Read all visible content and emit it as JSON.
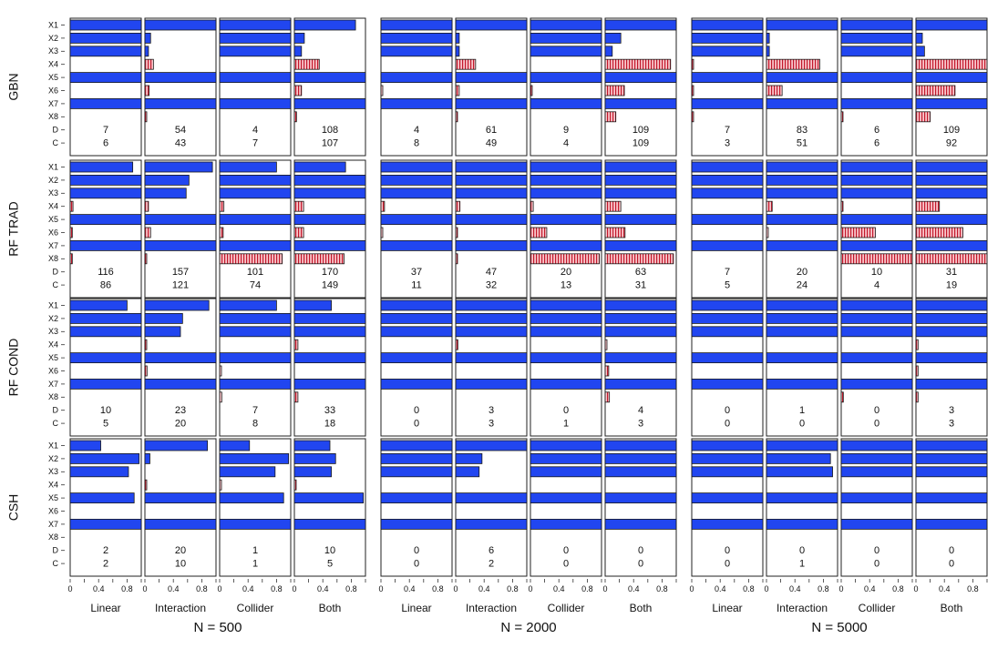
{
  "chart_data": {
    "type": "bar",
    "orientation": "horizontal",
    "row_labels": [
      "GBN",
      "RF TRAD",
      "RF COND",
      "CSH"
    ],
    "scenarios": [
      "Linear",
      "Interaction",
      "Collider",
      "Both"
    ],
    "sample_sizes": [
      "N = 500",
      "N = 2000",
      "N = 5000"
    ],
    "variables": [
      "X1",
      "X2",
      "X3",
      "X4",
      "X5",
      "X6",
      "X7",
      "X8"
    ],
    "count_labels": [
      "D",
      "C"
    ],
    "xlim": [
      0,
      1
    ],
    "x_ticks": [
      "0",
      "0.4",
      "0.8"
    ],
    "series_colors": {
      "true": "#2146f0",
      "false": "#f9c6cb",
      "false_stripe": "#c2182b"
    },
    "true_variables": {
      "Linear": [
        "X1",
        "X2",
        "X3",
        "X5",
        "X7"
      ],
      "Interaction": [
        "X1",
        "X2",
        "X3",
        "X5",
        "X7"
      ],
      "Collider": [
        "X1",
        "X2",
        "X3",
        "X5",
        "X7"
      ],
      "Both": [
        "X1",
        "X2",
        "X3",
        "X5",
        "X7"
      ]
    },
    "panels": [
      {
        "method": "GBN",
        "groups": [
          {
            "n": "N = 500",
            "cells": [
              {
                "scenario": "Linear",
                "values": [
                  1,
                  1,
                  1,
                  0,
                  1,
                  0,
                  1,
                  0
                ],
                "D": "7",
                "C": "6"
              },
              {
                "scenario": "Interaction",
                "values": [
                  1,
                  0.08,
                  0.05,
                  0.12,
                  1,
                  0.06,
                  1,
                  0.02
                ],
                "D": "54",
                "C": "43"
              },
              {
                "scenario": "Collider",
                "values": [
                  1,
                  1,
                  1,
                  0,
                  1,
                  0,
                  1,
                  0
                ],
                "D": "4",
                "C": "7"
              },
              {
                "scenario": "Both",
                "values": [
                  0.86,
                  0.14,
                  0.1,
                  0.35,
                  1,
                  0.1,
                  1,
                  0.03
                ],
                "D": "108",
                "C": "107"
              }
            ]
          },
          {
            "n": "N = 2000",
            "cells": [
              {
                "scenario": "Linear",
                "values": [
                  1,
                  1,
                  1,
                  0,
                  1,
                  0.01,
                  1,
                  0
                ],
                "D": "4",
                "C": "8"
              },
              {
                "scenario": "Interaction",
                "values": [
                  1,
                  0.05,
                  0.05,
                  0.28,
                  1,
                  0.05,
                  1,
                  0.02
                ],
                "D": "61",
                "C": "49"
              },
              {
                "scenario": "Collider",
                "values": [
                  1,
                  1,
                  1,
                  0,
                  1,
                  0.01,
                  1,
                  0
                ],
                "D": "9",
                "C": "4"
              },
              {
                "scenario": "Both",
                "values": [
                  1,
                  0.22,
                  0.1,
                  0.92,
                  1,
                  0.27,
                  1,
                  0.15
                ],
                "D": "109",
                "C": "109"
              }
            ]
          },
          {
            "n": "N = 5000",
            "cells": [
              {
                "scenario": "Linear",
                "values": [
                  1,
                  1,
                  1,
                  0.01,
                  1,
                  0.01,
                  1,
                  0.02
                ],
                "D": "7",
                "C": "3"
              },
              {
                "scenario": "Interaction",
                "values": [
                  1,
                  0.04,
                  0.04,
                  0.75,
                  1,
                  0.22,
                  1,
                  0
                ],
                "D": "83",
                "C": "51"
              },
              {
                "scenario": "Collider",
                "values": [
                  1,
                  1,
                  1,
                  0,
                  1,
                  0,
                  1,
                  0.01
                ],
                "D": "6",
                "C": "6"
              },
              {
                "scenario": "Both",
                "values": [
                  1,
                  0.09,
                  0.12,
                  1,
                  1,
                  0.55,
                  1,
                  0.2
                ],
                "D": "109",
                "C": "92"
              }
            ]
          }
        ]
      },
      {
        "method": "RF TRAD",
        "groups": [
          {
            "n": "N = 500",
            "cells": [
              {
                "scenario": "Linear",
                "values": [
                  0.88,
                  1,
                  1,
                  0.04,
                  1,
                  0.03,
                  1,
                  0.03
                ],
                "D": "116",
                "C": "86"
              },
              {
                "scenario": "Interaction",
                "values": [
                  0.95,
                  0.62,
                  0.58,
                  0.05,
                  1,
                  0.08,
                  1,
                  0.02
                ],
                "D": "157",
                "C": "121"
              },
              {
                "scenario": "Collider",
                "values": [
                  0.8,
                  1,
                  1,
                  0.06,
                  1,
                  0.05,
                  1,
                  0.88
                ],
                "D": "101",
                "C": "74"
              },
              {
                "scenario": "Both",
                "values": [
                  0.72,
                  1,
                  1,
                  0.13,
                  1,
                  0.13,
                  1,
                  0.7
                ],
                "D": "170",
                "C": "149"
              }
            ]
          },
          {
            "n": "N = 2000",
            "cells": [
              {
                "scenario": "Linear",
                "values": [
                  1,
                  1,
                  1,
                  0.05,
                  1,
                  0.01,
                  1,
                  0
                ],
                "D": "37",
                "C": "11"
              },
              {
                "scenario": "Interaction",
                "values": [
                  1,
                  1,
                  1,
                  0.06,
                  1,
                  0.02,
                  1,
                  0.01
                ],
                "D": "47",
                "C": "32"
              },
              {
                "scenario": "Collider",
                "values": [
                  1,
                  1,
                  1,
                  0.04,
                  1,
                  0.23,
                  1,
                  0.97
                ],
                "D": "20",
                "C": "13"
              },
              {
                "scenario": "Both",
                "values": [
                  1,
                  1,
                  1,
                  0.22,
                  1,
                  0.28,
                  1,
                  0.96
                ],
                "D": "63",
                "C": "31"
              }
            ]
          },
          {
            "n": "N = 5000",
            "cells": [
              {
                "scenario": "Linear",
                "values": [
                  1,
                  1,
                  1,
                  0,
                  1,
                  0,
                  1,
                  0
                ],
                "D": "7",
                "C": "5"
              },
              {
                "scenario": "Interaction",
                "values": [
                  1,
                  1,
                  1,
                  0.08,
                  1,
                  0.02,
                  1,
                  0
                ],
                "D": "20",
                "C": "24"
              },
              {
                "scenario": "Collider",
                "values": [
                  1,
                  1,
                  1,
                  0.01,
                  1,
                  0.48,
                  1,
                  1
                ],
                "D": "10",
                "C": "4"
              },
              {
                "scenario": "Both",
                "values": [
                  1,
                  1,
                  1,
                  0.33,
                  1,
                  0.66,
                  1,
                  1
                ],
                "D": "31",
                "C": "19"
              }
            ]
          }
        ]
      },
      {
        "method": "RF COND",
        "groups": [
          {
            "n": "N = 500",
            "cells": [
              {
                "scenario": "Linear",
                "values": [
                  0.8,
                  1,
                  1,
                  0,
                  1,
                  0,
                  1,
                  0
                ],
                "D": "10",
                "C": "5"
              },
              {
                "scenario": "Interaction",
                "values": [
                  0.9,
                  0.53,
                  0.5,
                  0.02,
                  1,
                  0.03,
                  1,
                  0
                ],
                "D": "23",
                "C": "20"
              },
              {
                "scenario": "Collider",
                "values": [
                  0.8,
                  1,
                  1,
                  0,
                  1,
                  0.02,
                  1,
                  0.03
                ],
                "D": "7",
                "C": "8"
              },
              {
                "scenario": "Both",
                "values": [
                  0.52,
                  1,
                  1,
                  0.05,
                  1,
                  0,
                  1,
                  0.05
                ],
                "D": "33",
                "C": "18"
              }
            ]
          },
          {
            "n": "N = 2000",
            "cells": [
              {
                "scenario": "Linear",
                "values": [
                  1,
                  1,
                  1,
                  0,
                  1,
                  0,
                  1,
                  0
                ],
                "D": "0",
                "C": "0"
              },
              {
                "scenario": "Interaction",
                "values": [
                  1,
                  1,
                  1,
                  0.03,
                  1,
                  0,
                  1,
                  0
                ],
                "D": "3",
                "C": "3"
              },
              {
                "scenario": "Collider",
                "values": [
                  1,
                  1,
                  1,
                  0,
                  1,
                  0,
                  1,
                  0
                ],
                "D": "0",
                "C": "1"
              },
              {
                "scenario": "Both",
                "values": [
                  1,
                  1,
                  1,
                  0.02,
                  1,
                  0.05,
                  1,
                  0.06
                ],
                "D": "4",
                "C": "3"
              }
            ]
          },
          {
            "n": "N = 5000",
            "cells": [
              {
                "scenario": "Linear",
                "values": [
                  1,
                  1,
                  1,
                  0,
                  1,
                  0,
                  1,
                  0
                ],
                "D": "0",
                "C": "0"
              },
              {
                "scenario": "Interaction",
                "values": [
                  1,
                  1,
                  1,
                  0,
                  1,
                  0,
                  1,
                  0
                ],
                "D": "1",
                "C": "0"
              },
              {
                "scenario": "Collider",
                "values": [
                  1,
                  1,
                  1,
                  0,
                  1,
                  0,
                  1,
                  0.03
                ],
                "D": "0",
                "C": "0"
              },
              {
                "scenario": "Both",
                "values": [
                  1,
                  1,
                  1,
                  0.03,
                  1,
                  0.03,
                  1,
                  0.03
                ],
                "D": "3",
                "C": "3"
              }
            ]
          }
        ]
      },
      {
        "method": "CSH",
        "groups": [
          {
            "n": "N = 500",
            "cells": [
              {
                "scenario": "Linear",
                "values": [
                  0.43,
                  0.97,
                  0.82,
                  0,
                  0.9,
                  0,
                  1,
                  0
                ],
                "D": "2",
                "C": "2"
              },
              {
                "scenario": "Interaction",
                "values": [
                  0.88,
                  0.07,
                  0,
                  0.01,
                  1,
                  0,
                  1,
                  0
                ],
                "D": "20",
                "C": "10"
              },
              {
                "scenario": "Collider",
                "values": [
                  0.42,
                  0.97,
                  0.78,
                  0.02,
                  0.9,
                  0,
                  1,
                  0
                ],
                "D": "1",
                "C": "1"
              },
              {
                "scenario": "Both",
                "values": [
                  0.5,
                  0.58,
                  0.52,
                  0.01,
                  0.97,
                  0,
                  1,
                  0
                ],
                "D": "10",
                "C": "5"
              }
            ]
          },
          {
            "n": "N = 2000",
            "cells": [
              {
                "scenario": "Linear",
                "values": [
                  1,
                  1,
                  1,
                  0,
                  1,
                  0,
                  1,
                  0
                ],
                "D": "0",
                "C": "0"
              },
              {
                "scenario": "Interaction",
                "values": [
                  1,
                  0.37,
                  0.33,
                  0,
                  1,
                  0,
                  1,
                  0
                ],
                "D": "6",
                "C": "2"
              },
              {
                "scenario": "Collider",
                "values": [
                  1,
                  1,
                  1,
                  0,
                  1,
                  0,
                  1,
                  0
                ],
                "D": "0",
                "C": "0"
              },
              {
                "scenario": "Both",
                "values": [
                  1,
                  1,
                  1,
                  0,
                  1,
                  0,
                  1,
                  0
                ],
                "D": "0",
                "C": "0"
              }
            ]
          },
          {
            "n": "N = 5000",
            "cells": [
              {
                "scenario": "Linear",
                "values": [
                  1,
                  1,
                  1,
                  0,
                  1,
                  0,
                  1,
                  0
                ],
                "D": "0",
                "C": "0"
              },
              {
                "scenario": "Interaction",
                "values": [
                  1,
                  0.9,
                  0.93,
                  0,
                  1,
                  0,
                  1,
                  0
                ],
                "D": "0",
                "C": "1"
              },
              {
                "scenario": "Collider",
                "values": [
                  1,
                  1,
                  1,
                  0,
                  1,
                  0,
                  1,
                  0
                ],
                "D": "0",
                "C": "0"
              },
              {
                "scenario": "Both",
                "values": [
                  1,
                  1,
                  1,
                  0,
                  1,
                  0,
                  1,
                  0
                ],
                "D": "0",
                "C": "0"
              }
            ]
          }
        ]
      }
    ]
  }
}
